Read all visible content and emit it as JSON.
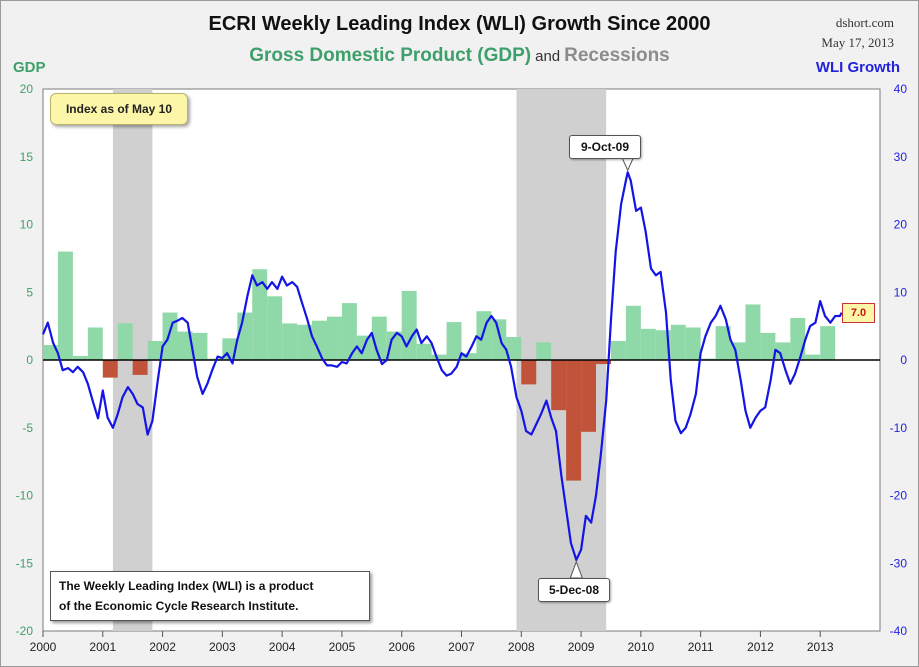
{
  "header": {
    "title": "ECRI Weekly Leading Index (WLI) Growth Since 2000",
    "subtitle_gdp": "Gross Domestic Product (GDP)",
    "subtitle_and": "and",
    "subtitle_rec": "Recessions",
    "source_line1": "dshort.com",
    "source_line2": "May 17, 2013"
  },
  "axes": {
    "left_label": "GDP",
    "right_label": "WLI Growth"
  },
  "annotations": {
    "as_of": "Index as of May 10",
    "note_line1": "The Weekly Leading Index (WLI) is a product",
    "note_line2": "of the Economic Cycle Research Institute.",
    "peak_label": "9-Oct-09",
    "trough_label": "5-Dec-08",
    "last_value": "7.0"
  },
  "colors": {
    "background": "#f1f1f1",
    "gdp_positive": "#8fd8a8",
    "gdp_negative": "#c0533a",
    "recession": "#d0d0d0",
    "wli_line": "#1414e6",
    "left_axis_text": "#3f9f6b",
    "right_axis_text": "#2222dd"
  },
  "chart_data": {
    "type": "bar+line",
    "x_range": [
      2000,
      2014
    ],
    "ylim_left": [
      -20,
      20
    ],
    "ylim_right": [
      -40,
      40
    ],
    "left_ticks": [
      20,
      15,
      10,
      5,
      0,
      -5,
      -10,
      -15,
      -20
    ],
    "right_ticks": [
      40,
      30,
      20,
      10,
      0,
      -10,
      -20,
      -30,
      -40
    ],
    "x_ticks": [
      "2000",
      "2001",
      "2002",
      "2003",
      "2004",
      "2005",
      "2006",
      "2007",
      "2008",
      "2009",
      "2010",
      "2011",
      "2012",
      "2013"
    ],
    "recessions": [
      [
        2001.17,
        2001.83
      ],
      [
        2007.92,
        2009.42
      ]
    ],
    "gdp": {
      "quarters": [
        "2000Q1",
        "2000Q2",
        "2000Q3",
        "2000Q4",
        "2001Q1",
        "2001Q2",
        "2001Q3",
        "2001Q4",
        "2002Q1",
        "2002Q2",
        "2002Q3",
        "2002Q4",
        "2003Q1",
        "2003Q2",
        "2003Q3",
        "2003Q4",
        "2004Q1",
        "2004Q2",
        "2004Q3",
        "2004Q4",
        "2005Q1",
        "2005Q2",
        "2005Q3",
        "2005Q4",
        "2006Q1",
        "2006Q2",
        "2006Q3",
        "2006Q4",
        "2007Q1",
        "2007Q2",
        "2007Q3",
        "2007Q4",
        "2008Q1",
        "2008Q2",
        "2008Q3",
        "2008Q4",
        "2009Q1",
        "2009Q2",
        "2009Q3",
        "2009Q4",
        "2010Q1",
        "2010Q2",
        "2010Q3",
        "2010Q4",
        "2011Q1",
        "2011Q2",
        "2011Q3",
        "2011Q4",
        "2012Q1",
        "2012Q2",
        "2012Q3",
        "2012Q4",
        "2013Q1"
      ],
      "values": [
        1.1,
        8.0,
        0.3,
        2.4,
        -1.3,
        2.7,
        -1.1,
        1.4,
        3.5,
        2.1,
        2.0,
        0.1,
        1.6,
        3.5,
        6.7,
        4.7,
        2.7,
        2.6,
        2.9,
        3.2,
        4.2,
        1.8,
        3.2,
        2.1,
        5.1,
        1.2,
        0.4,
        2.8,
        0.5,
        3.6,
        3.0,
        1.7,
        -1.8,
        1.3,
        -3.7,
        -8.9,
        -5.3,
        -0.3,
        1.4,
        4.0,
        2.3,
        2.2,
        2.6,
        2.4,
        0.1,
        2.5,
        1.3,
        4.1,
        2.0,
        1.3,
        3.1,
        0.4,
        2.5
      ]
    },
    "series": [
      {
        "name": "WLI Growth",
        "points": [
          [
            2000.0,
            3.8
          ],
          [
            2000.08,
            5.5
          ],
          [
            2000.17,
            2.5
          ],
          [
            2000.25,
            1.0
          ],
          [
            2000.33,
            -1.5
          ],
          [
            2000.42,
            -1.2
          ],
          [
            2000.5,
            -1.8
          ],
          [
            2000.58,
            -1.0
          ],
          [
            2000.67,
            -1.8
          ],
          [
            2000.75,
            -3.5
          ],
          [
            2000.83,
            -6.0
          ],
          [
            2000.92,
            -8.6
          ],
          [
            2001.0,
            -4.5
          ],
          [
            2001.08,
            -8.5
          ],
          [
            2001.17,
            -10.0
          ],
          [
            2001.25,
            -8.0
          ],
          [
            2001.33,
            -5.5
          ],
          [
            2001.42,
            -4.0
          ],
          [
            2001.5,
            -5.0
          ],
          [
            2001.58,
            -6.5
          ],
          [
            2001.67,
            -7.0
          ],
          [
            2001.75,
            -11.0
          ],
          [
            2001.83,
            -9.0
          ],
          [
            2001.92,
            -3.0
          ],
          [
            2002.0,
            2.0
          ],
          [
            2002.08,
            3.0
          ],
          [
            2002.17,
            5.5
          ],
          [
            2002.25,
            5.8
          ],
          [
            2002.33,
            6.2
          ],
          [
            2002.42,
            5.5
          ],
          [
            2002.5,
            1.5
          ],
          [
            2002.58,
            -2.5
          ],
          [
            2002.67,
            -5.0
          ],
          [
            2002.75,
            -3.5
          ],
          [
            2002.83,
            -1.5
          ],
          [
            2002.92,
            0.5
          ],
          [
            2003.0,
            0.3
          ],
          [
            2003.08,
            1.0
          ],
          [
            2003.17,
            -0.5
          ],
          [
            2003.25,
            3.0
          ],
          [
            2003.33,
            5.5
          ],
          [
            2003.42,
            9.5
          ],
          [
            2003.5,
            12.5
          ],
          [
            2003.58,
            11.0
          ],
          [
            2003.67,
            11.5
          ],
          [
            2003.75,
            10.5
          ],
          [
            2003.83,
            11.5
          ],
          [
            2003.92,
            10.5
          ],
          [
            2004.0,
            12.3
          ],
          [
            2004.08,
            11.0
          ],
          [
            2004.17,
            11.5
          ],
          [
            2004.25,
            10.8
          ],
          [
            2004.33,
            8.5
          ],
          [
            2004.42,
            6.0
          ],
          [
            2004.5,
            3.5
          ],
          [
            2004.58,
            2.0
          ],
          [
            2004.67,
            0.2
          ],
          [
            2004.75,
            -0.8
          ],
          [
            2004.83,
            -0.8
          ],
          [
            2004.92,
            -1.0
          ],
          [
            2005.0,
            -0.3
          ],
          [
            2005.08,
            -0.5
          ],
          [
            2005.17,
            1.0
          ],
          [
            2005.25,
            2.0
          ],
          [
            2005.33,
            1.0
          ],
          [
            2005.42,
            3.0
          ],
          [
            2005.5,
            4.0
          ],
          [
            2005.58,
            1.5
          ],
          [
            2005.67,
            -0.6
          ],
          [
            2005.75,
            0.0
          ],
          [
            2005.83,
            3.0
          ],
          [
            2005.92,
            4.0
          ],
          [
            2006.0,
            3.5
          ],
          [
            2006.08,
            2.0
          ],
          [
            2006.17,
            3.5
          ],
          [
            2006.25,
            4.5
          ],
          [
            2006.33,
            2.5
          ],
          [
            2006.42,
            3.5
          ],
          [
            2006.5,
            2.5
          ],
          [
            2006.58,
            0.5
          ],
          [
            2006.67,
            -1.5
          ],
          [
            2006.75,
            -2.3
          ],
          [
            2006.83,
            -2.0
          ],
          [
            2006.92,
            -1.0
          ],
          [
            2007.0,
            1.0
          ],
          [
            2007.08,
            0.5
          ],
          [
            2007.17,
            2.0
          ],
          [
            2007.25,
            3.5
          ],
          [
            2007.33,
            3.0
          ],
          [
            2007.42,
            5.5
          ],
          [
            2007.5,
            6.5
          ],
          [
            2007.58,
            5.5
          ],
          [
            2007.67,
            2.5
          ],
          [
            2007.75,
            1.5
          ],
          [
            2007.83,
            -1.0
          ],
          [
            2007.92,
            -5.5
          ],
          [
            2008.0,
            -7.5
          ],
          [
            2008.08,
            -10.5
          ],
          [
            2008.17,
            -11.0
          ],
          [
            2008.25,
            -9.5
          ],
          [
            2008.33,
            -8.0
          ],
          [
            2008.42,
            -6.0
          ],
          [
            2008.5,
            -8.5
          ],
          [
            2008.58,
            -10.5
          ],
          [
            2008.67,
            -17.0
          ],
          [
            2008.75,
            -22.0
          ],
          [
            2008.83,
            -27.0
          ],
          [
            2008.92,
            -29.5
          ],
          [
            2009.0,
            -28.0
          ],
          [
            2009.08,
            -23.0
          ],
          [
            2009.17,
            -24.0
          ],
          [
            2009.25,
            -20.0
          ],
          [
            2009.33,
            -14.0
          ],
          [
            2009.42,
            -6.0
          ],
          [
            2009.5,
            6.0
          ],
          [
            2009.58,
            16.0
          ],
          [
            2009.67,
            23.0
          ],
          [
            2009.75,
            26.5
          ],
          [
            2009.78,
            27.7
          ],
          [
            2009.83,
            26.5
          ],
          [
            2009.92,
            22.0
          ],
          [
            2010.0,
            22.5
          ],
          [
            2010.08,
            19.0
          ],
          [
            2010.17,
            13.5
          ],
          [
            2010.25,
            12.5
          ],
          [
            2010.33,
            13.0
          ],
          [
            2010.42,
            7.0
          ],
          [
            2010.5,
            -3.0
          ],
          [
            2010.58,
            -9.0
          ],
          [
            2010.67,
            -10.8
          ],
          [
            2010.75,
            -10.0
          ],
          [
            2010.83,
            -8.0
          ],
          [
            2010.92,
            -5.0
          ],
          [
            2011.0,
            1.0
          ],
          [
            2011.08,
            3.5
          ],
          [
            2011.17,
            5.5
          ],
          [
            2011.25,
            6.5
          ],
          [
            2011.33,
            8.0
          ],
          [
            2011.42,
            6.0
          ],
          [
            2011.5,
            3.0
          ],
          [
            2011.58,
            1.5
          ],
          [
            2011.67,
            -3.0
          ],
          [
            2011.75,
            -7.5
          ],
          [
            2011.83,
            -10.0
          ],
          [
            2011.92,
            -8.5
          ],
          [
            2012.0,
            -7.5
          ],
          [
            2012.08,
            -7.0
          ],
          [
            2012.17,
            -3.0
          ],
          [
            2012.25,
            1.5
          ],
          [
            2012.33,
            1.0
          ],
          [
            2012.42,
            -1.5
          ],
          [
            2012.5,
            -3.5
          ],
          [
            2012.58,
            -2.0
          ],
          [
            2012.67,
            0.5
          ],
          [
            2012.75,
            3.0
          ],
          [
            2012.83,
            5.0
          ],
          [
            2012.92,
            5.5
          ],
          [
            2013.0,
            8.7
          ],
          [
            2013.08,
            6.5
          ],
          [
            2013.17,
            5.5
          ],
          [
            2013.25,
            6.5
          ],
          [
            2013.33,
            6.5
          ],
          [
            2013.36,
            7.0
          ]
        ]
      }
    ],
    "highlights": {
      "peak": {
        "x": 2009.78,
        "y": 27.7
      },
      "trough": {
        "x": 2008.92,
        "y": -29.5
      },
      "last": {
        "x": 2013.36,
        "y": 7.0
      }
    }
  }
}
